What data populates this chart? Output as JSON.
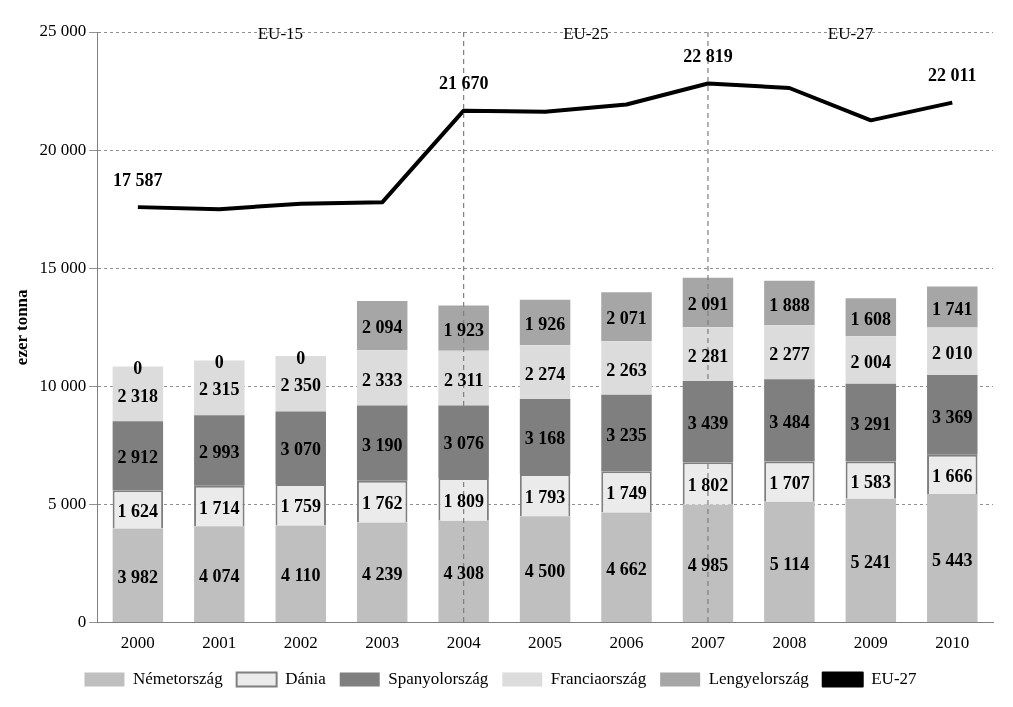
{
  "chart_data": {
    "type": "bar",
    "stacked": true,
    "ylabel": "ezer tonna",
    "categories": [
      "2000",
      "2001",
      "2002",
      "2003",
      "2004",
      "2005",
      "2006",
      "2007",
      "2008",
      "2009",
      "2010"
    ],
    "series": [
      {
        "name": "Németország",
        "color": "#bfbfbf",
        "values": [
          3982,
          4074,
          4110,
          4239,
          4308,
          4500,
          4662,
          4985,
          5114,
          5241,
          5443
        ]
      },
      {
        "name": "Dánia",
        "color": "#ebebeb",
        "values": [
          1624,
          1714,
          1759,
          1762,
          1809,
          1793,
          1749,
          1802,
          1707,
          1583,
          1666
        ]
      },
      {
        "name": "Spanyolország",
        "color": "#7f7f7f",
        "values": [
          2912,
          2993,
          3070,
          3190,
          3076,
          3168,
          3235,
          3439,
          3484,
          3291,
          3369
        ]
      },
      {
        "name": "Franciaország",
        "color": "#dcdcdc",
        "values": [
          2318,
          2315,
          2350,
          2333,
          2311,
          2274,
          2263,
          2281,
          2277,
          2004,
          2010
        ]
      },
      {
        "name": "Lengyelország",
        "color": "#a6a6a6",
        "values": [
          0,
          0,
          0,
          2094,
          1923,
          1926,
          2071,
          2091,
          1888,
          1608,
          1741
        ]
      },
      {
        "name": "EU-27",
        "type": "line",
        "color": "#000000",
        "values": [
          17587,
          17500,
          17730,
          17790,
          21670,
          21620,
          21930,
          22819,
          22630,
          21260,
          22011
        ],
        "value_labels": [
          "17 587",
          null,
          null,
          null,
          "21 670",
          null,
          null,
          "22 819",
          null,
          null,
          "22 011"
        ]
      }
    ],
    "ylim": [
      0,
      25000
    ],
    "yticks": [
      0,
      {
        "value": 5000,
        "label": "5 000"
      },
      {
        "value": 10000,
        "label": "10 000"
      },
      {
        "value": 15000,
        "label": "15 000"
      },
      {
        "value": 20000,
        "label": "20 000"
      },
      {
        "value": 25000,
        "label": "25 000"
      }
    ],
    "grid": "y",
    "legend": "bottom",
    "data_labels": true,
    "marker": "none",
    "ref_lines": [
      {
        "axis": "x",
        "value": "2004",
        "line_style": "dashed",
        "color": "#7f7f7f"
      },
      {
        "axis": "x",
        "value": "2007",
        "line_style": "dashed",
        "color": "#7f7f7f"
      }
    ],
    "annotations": [
      "EU-15",
      "EU-25",
      "EU-27"
    ]
  }
}
